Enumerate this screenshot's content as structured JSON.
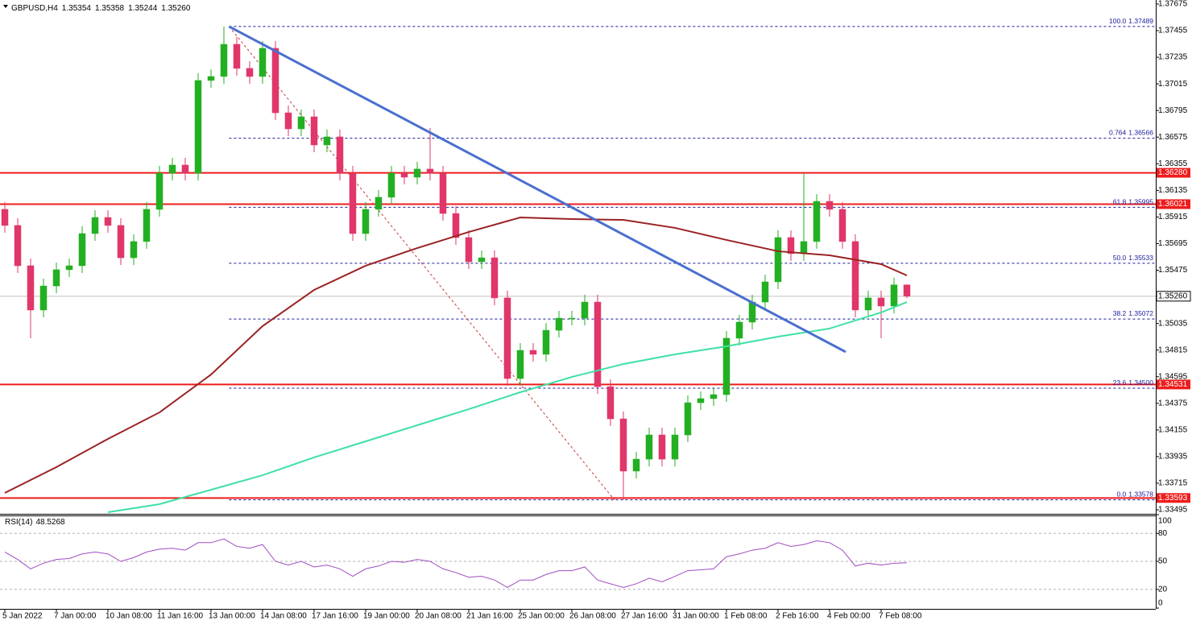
{
  "chart_data": {
    "type": "candlestick",
    "symbol": "GBPUSD,H4",
    "last_price": {
      "value": 1.3526,
      "label": "1.35260"
    },
    "open": [
      1.35978,
      1.35845,
      1.35512,
      1.35146,
      1.35345,
      1.35479,
      1.35512,
      1.35778,
      1.35911,
      1.35845,
      1.35578,
      1.35712,
      1.35978,
      1.36277,
      1.36344,
      1.36277,
      1.37043,
      1.37076,
      1.37342,
      1.37143,
      1.37076,
      1.37309,
      1.36776,
      1.36643,
      1.36743,
      1.3651,
      1.36577,
      1.36277,
      1.35778,
      1.35978,
      1.36078,
      1.36277,
      1.36244,
      1.36311,
      1.36277,
      1.35944,
      1.35745,
      1.35545,
      1.35578,
      1.35246,
      1.3458,
      1.34813,
      1.3478,
      1.34979,
      1.35079,
      1.35079,
      1.35212,
      1.34513,
      1.34247,
      1.33815,
      1.33914,
      1.34114,
      1.33914,
      1.34114,
      1.3438,
      1.34414,
      1.34447,
      1.34913,
      1.35046,
      1.35212,
      1.35379,
      1.35745,
      1.35612,
      1.35712,
      1.36044,
      1.35978,
      1.35712,
      1.35146,
      1.35246,
      1.35179,
      1.35354
    ],
    "high": [
      1.36038,
      1.35905,
      1.35572,
      1.35405,
      1.35539,
      1.35572,
      1.35838,
      1.35971,
      1.35971,
      1.35905,
      1.35772,
      1.36038,
      1.36337,
      1.36404,
      1.36404,
      1.37103,
      1.37136,
      1.37489,
      1.37402,
      1.37203,
      1.37369,
      1.37369,
      1.36836,
      1.36803,
      1.36803,
      1.36637,
      1.36637,
      1.36337,
      1.36038,
      1.36138,
      1.36337,
      1.36337,
      1.36371,
      1.3665,
      1.36337,
      1.36004,
      1.35805,
      1.35638,
      1.35638,
      1.35306,
      1.34873,
      1.34873,
      1.35039,
      1.35139,
      1.35139,
      1.35272,
      1.35272,
      1.34573,
      1.34307,
      1.33974,
      1.34174,
      1.34174,
      1.34174,
      1.3444,
      1.34474,
      1.34507,
      1.34973,
      1.35106,
      1.35272,
      1.35439,
      1.35805,
      1.35805,
      1.3628,
      1.36104,
      1.36104,
      1.36038,
      1.35772,
      1.35306,
      1.35306,
      1.35414,
      1.35358
    ],
    "low": [
      1.35785,
      1.35452,
      1.34913,
      1.35086,
      1.35285,
      1.35419,
      1.35452,
      1.35718,
      1.35785,
      1.35518,
      1.35518,
      1.35652,
      1.35918,
      1.36217,
      1.36217,
      1.36217,
      1.36983,
      1.37016,
      1.37083,
      1.37016,
      1.37016,
      1.36716,
      1.36583,
      1.36583,
      1.3645,
      1.3645,
      1.36217,
      1.35718,
      1.35718,
      1.35918,
      1.36018,
      1.36184,
      1.36184,
      1.36217,
      1.35884,
      1.35685,
      1.35485,
      1.35485,
      1.35186,
      1.3452,
      1.3452,
      1.3472,
      1.3472,
      1.34919,
      1.35019,
      1.35019,
      1.34453,
      1.34187,
      1.33578,
      1.33755,
      1.33854,
      1.33854,
      1.33854,
      1.34054,
      1.3432,
      1.34354,
      1.34387,
      1.34853,
      1.34986,
      1.35152,
      1.35319,
      1.35552,
      1.35552,
      1.35652,
      1.35918,
      1.35652,
      1.35086,
      1.35086,
      1.34913,
      1.35119,
      1.35244
    ],
    "close": [
      1.35845,
      1.35512,
      1.35146,
      1.35345,
      1.35479,
      1.35512,
      1.35778,
      1.35911,
      1.35845,
      1.35578,
      1.35712,
      1.35978,
      1.36277,
      1.36344,
      1.36277,
      1.37043,
      1.37076,
      1.37342,
      1.37143,
      1.37076,
      1.37309,
      1.36776,
      1.36643,
      1.36743,
      1.3651,
      1.36577,
      1.36277,
      1.35778,
      1.35978,
      1.36078,
      1.36277,
      1.36244,
      1.36311,
      1.36277,
      1.35944,
      1.35745,
      1.35545,
      1.35578,
      1.35246,
      1.3458,
      1.34813,
      1.3478,
      1.34979,
      1.35079,
      1.35079,
      1.35212,
      1.34513,
      1.34247,
      1.33815,
      1.33914,
      1.34114,
      1.33914,
      1.34114,
      1.3438,
      1.34414,
      1.34447,
      1.34913,
      1.35046,
      1.35212,
      1.35379,
      1.35745,
      1.35612,
      1.35712,
      1.36044,
      1.35978,
      1.35712,
      1.35146,
      1.35246,
      1.35179,
      1.35354,
      1.3526
    ],
    "up_color": "#22b022",
    "down_color": "#e0366a",
    "xlim": [
      -0.375,
      89.3125
    ],
    "ylim": [
      1.33462,
      1.37708
    ],
    "yticks": [
      1.37675,
      1.37455,
      1.37235,
      1.37015,
      1.36795,
      1.36575,
      1.36355,
      1.36135,
      1.35915,
      1.35695,
      1.35475,
      1.35035,
      1.34815,
      1.34595,
      1.34375,
      1.34155,
      1.33935,
      1.33715,
      1.33495
    ],
    "xticks": [
      {
        "value": 0,
        "label": "5 Jan 2022"
      },
      {
        "value": 4,
        "label": "7 Jan 00:00"
      },
      {
        "value": 8,
        "label": "10 Jan 08:00"
      },
      {
        "value": 12,
        "label": "11 Jan 16:00"
      },
      {
        "value": 16,
        "label": "13 Jan 00:00"
      },
      {
        "value": 20,
        "label": "14 Jan 08:00"
      },
      {
        "value": 24,
        "label": "17 Jan 16:00"
      },
      {
        "value": 28,
        "label": "19 Jan 00:00"
      },
      {
        "value": 32,
        "label": "20 Jan 08:00"
      },
      {
        "value": 36,
        "label": "21 Jan 16:00"
      },
      {
        "value": 40,
        "label": "25 Jan 00:00"
      },
      {
        "value": 44,
        "label": "26 Jan 08:00"
      },
      {
        "value": 48,
        "label": "27 Jan 16:00"
      },
      {
        "value": 52,
        "label": "31 Jan 00:00"
      },
      {
        "value": 56,
        "label": "1 Feb 08:00"
      },
      {
        "value": 60,
        "label": "2 Feb 16:00"
      },
      {
        "value": 64,
        "label": "4 Feb 00:00"
      },
      {
        "value": 68,
        "label": "7 Feb 08:00"
      }
    ],
    "levels": [
      {
        "value": 1.3628,
        "label": "1.36280"
      },
      1.36021,
      1.34531,
      1.33593
    ],
    "level_color": "#ee1c1c",
    "fib": {
      "color": "#1a1a9c",
      "line_color": "#c83a3a",
      "x": [
        17.4,
        47.3
      ],
      "values": [
        1.37489,
        1.33578
      ],
      "levels": [
        {
          "ratio": {
            "value": 100,
            "label": "100.0"
          },
          "price": 1.37489
        },
        {
          "ratio": 0.764,
          "price": 1.36566
        },
        {
          "ratio": 61.8,
          "price": 1.35995
        },
        {
          "ratio": {
            "value": 50,
            "label": "50.0"
          },
          "price": 1.35533
        },
        {
          "ratio": 38.2,
          "price": 1.35072
        },
        {
          "ratio": 23.6,
          "price": {
            "value": 1.345,
            "label": "1.34500"
          }
        },
        {
          "ratio": {
            "value": 0,
            "label": "0.0"
          },
          "price": 1.33578
        }
      ]
    },
    "trendline": {
      "color": "#4a6fcf",
      "x": [
        17.4,
        65.25
      ],
      "values": [
        1.37489,
        1.348
      ]
    },
    "moving_averages": [
      {
        "color": "#9b2222",
        "x": [
          0,
          4,
          8,
          12,
          16,
          20,
          24,
          28,
          32,
          36,
          40,
          44,
          48,
          52,
          56,
          60,
          64,
          68,
          70
        ],
        "values": [
          1.33635,
          1.33848,
          1.34081,
          1.343,
          1.34613,
          1.35013,
          1.35312,
          1.35512,
          1.35658,
          1.35791,
          1.35911,
          1.35898,
          1.35891,
          1.35825,
          1.35725,
          1.35632,
          1.35598,
          1.35525,
          1.35432
        ]
      },
      {
        "color": "#3ee0a4",
        "x": [
          8,
          12,
          16,
          20,
          24,
          28,
          32,
          36,
          40,
          44,
          48,
          52,
          56,
          60,
          64,
          68,
          70
        ],
        "values": [
          1.33475,
          1.33542,
          1.33661,
          1.33781,
          1.33928,
          1.34061,
          1.34194,
          1.34327,
          1.34467,
          1.34593,
          1.347,
          1.3478,
          1.34846,
          1.34926,
          1.34993,
          1.35126,
          1.35212
        ]
      }
    ],
    "rsi": {
      "title": "RSI(14)",
      "last": 48.5268,
      "color": "#a04cc0",
      "ylim": [
        0,
        100
      ],
      "yticks": [
        100,
        80,
        50,
        20,
        0
      ],
      "values": [
        60,
        52,
        42,
        48,
        52,
        53,
        58,
        60,
        58,
        50,
        54,
        60,
        63,
        64,
        62,
        70,
        70,
        74,
        66,
        64,
        68,
        50,
        46,
        50,
        44,
        46,
        42,
        34,
        42,
        45,
        50,
        49,
        52,
        50,
        42,
        38,
        33,
        34,
        30,
        22,
        30,
        30,
        36,
        40,
        40,
        44,
        30,
        26,
        22,
        26,
        32,
        28,
        34,
        40,
        41,
        42,
        55,
        58,
        62,
        64,
        70,
        66,
        68,
        72,
        70,
        62,
        45,
        48,
        46,
        48,
        48.5268
      ]
    }
  }
}
